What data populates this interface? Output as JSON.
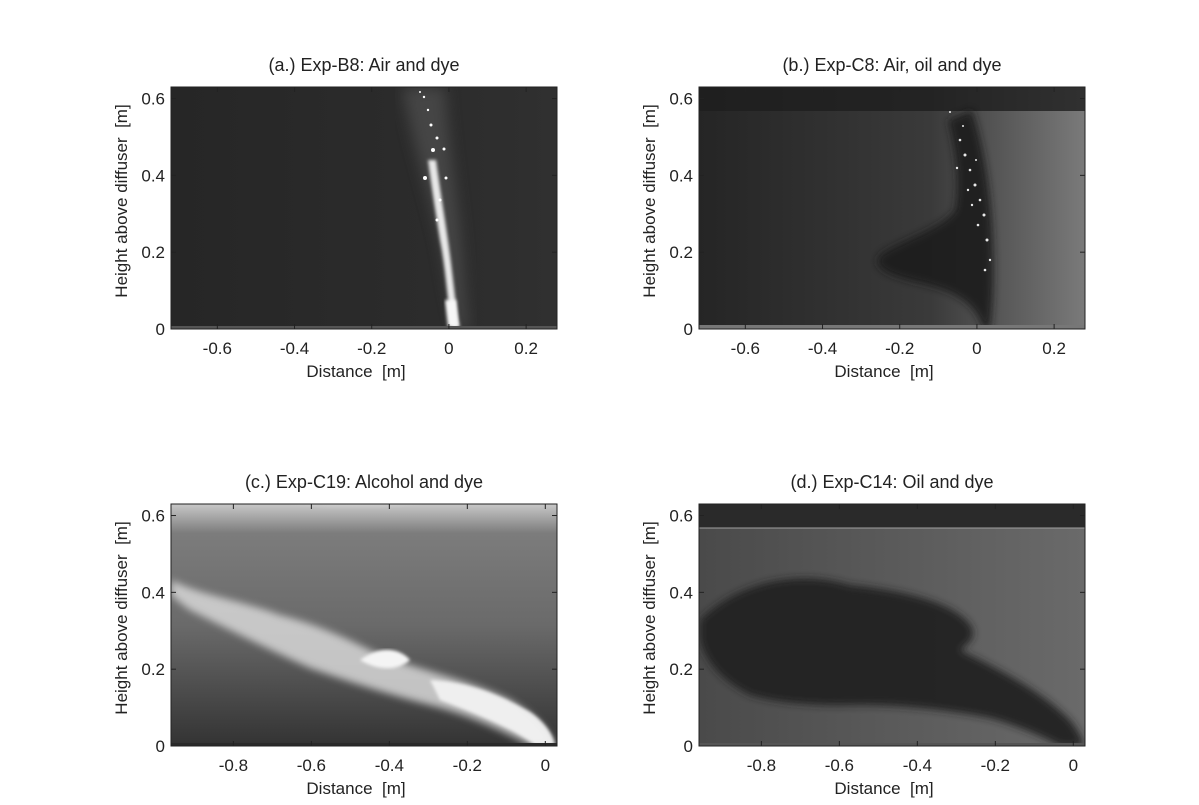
{
  "panels": [
    {
      "title": "(a.)  Exp-B8:  Air and dye",
      "xlabel": "Distance  [m]",
      "ylabel": "Height above diffuser  [m]",
      "xlim": [
        -0.72,
        0.28
      ],
      "ylim": [
        0,
        0.63
      ],
      "xticks": [
        "-0.6",
        "-0.4",
        "-0.2",
        "0",
        "0.2"
      ],
      "yticks": [
        "0",
        "0.2",
        "0.4",
        "0.6"
      ],
      "image": "bubble plume rising vertically from diffuser at x=0, bright white bubbles on dark background"
    },
    {
      "title": "(b.)  Exp-C8:  Air, oil and dye",
      "xlabel": "Distance  [m]",
      "ylabel": "Height above diffuser  [m]",
      "xlim": [
        -0.72,
        0.28
      ],
      "ylim": [
        0,
        0.63
      ],
      "xticks": [
        "-0.6",
        "-0.4",
        "-0.2",
        "0",
        "0.2"
      ],
      "yticks": [
        "0",
        "0.2",
        "0.4",
        "0.6"
      ],
      "image": "dark oil plume with sparkling bubbles rising from diffuser, leaning left"
    },
    {
      "title": "(c.)  Exp-C19:  Alcohol and dye",
      "xlabel": "Distance  [m]",
      "ylabel": "Height above diffuser  [m]",
      "xlim": [
        -0.96,
        0.03
      ],
      "ylim": [
        0,
        0.63
      ],
      "xticks": [
        "-0.8",
        "-0.6",
        "-0.4",
        "-0.2",
        "0"
      ],
      "yticks": [
        "0",
        "0.2",
        "0.4",
        "0.6"
      ],
      "image": "bright white alcohol plume bending strongly to the left"
    },
    {
      "title": "(d.)  Exp-C14:  Oil and dye",
      "xlabel": "Distance  [m]",
      "ylabel": "Height above diffuser  [m]",
      "xlim": [
        -0.96,
        0.03
      ],
      "ylim": [
        0,
        0.63
      ],
      "xticks": [
        "-0.8",
        "-0.6",
        "-0.4",
        "-0.2",
        "0"
      ],
      "yticks": [
        "0",
        "0.2",
        "0.4",
        "0.6"
      ],
      "image": "dark oil plume bending strongly to the left on grey background"
    }
  ]
}
